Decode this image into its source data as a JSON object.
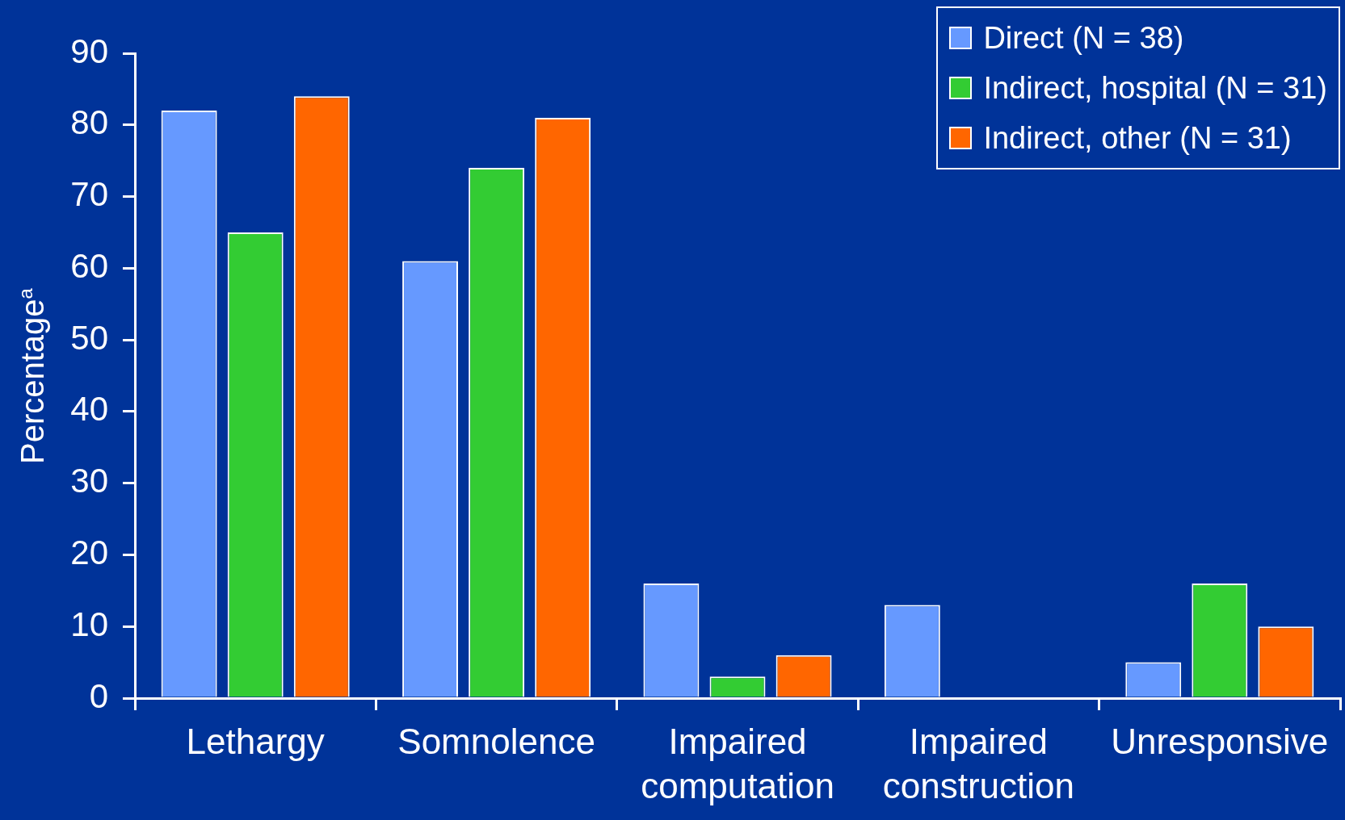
{
  "chart_data": {
    "type": "bar",
    "ylabel": "Percentage$^{a}$",
    "categories": [
      "Lethargy",
      "Somnolence",
      "Impaired computation",
      "Impaired construction",
      "Unresponsive"
    ],
    "series": [
      {
        "name": "Direct (N = 38)",
        "color": "#6699ff",
        "values": [
          82,
          61,
          16,
          13,
          5
        ]
      },
      {
        "name": "Indirect, hospital (N = 31)",
        "color": "#33cc33",
        "values": [
          65,
          74,
          3,
          0,
          16
        ]
      },
      {
        "name": "Indirect, other (N = 31)",
        "color": "#ff6600",
        "values": [
          84,
          81,
          6,
          0,
          10
        ]
      }
    ],
    "ylim": [
      0,
      90
    ],
    "yticks": [
      0,
      10,
      20,
      30,
      40,
      50,
      60,
      70,
      80,
      90
    ],
    "legend": "top right"
  }
}
